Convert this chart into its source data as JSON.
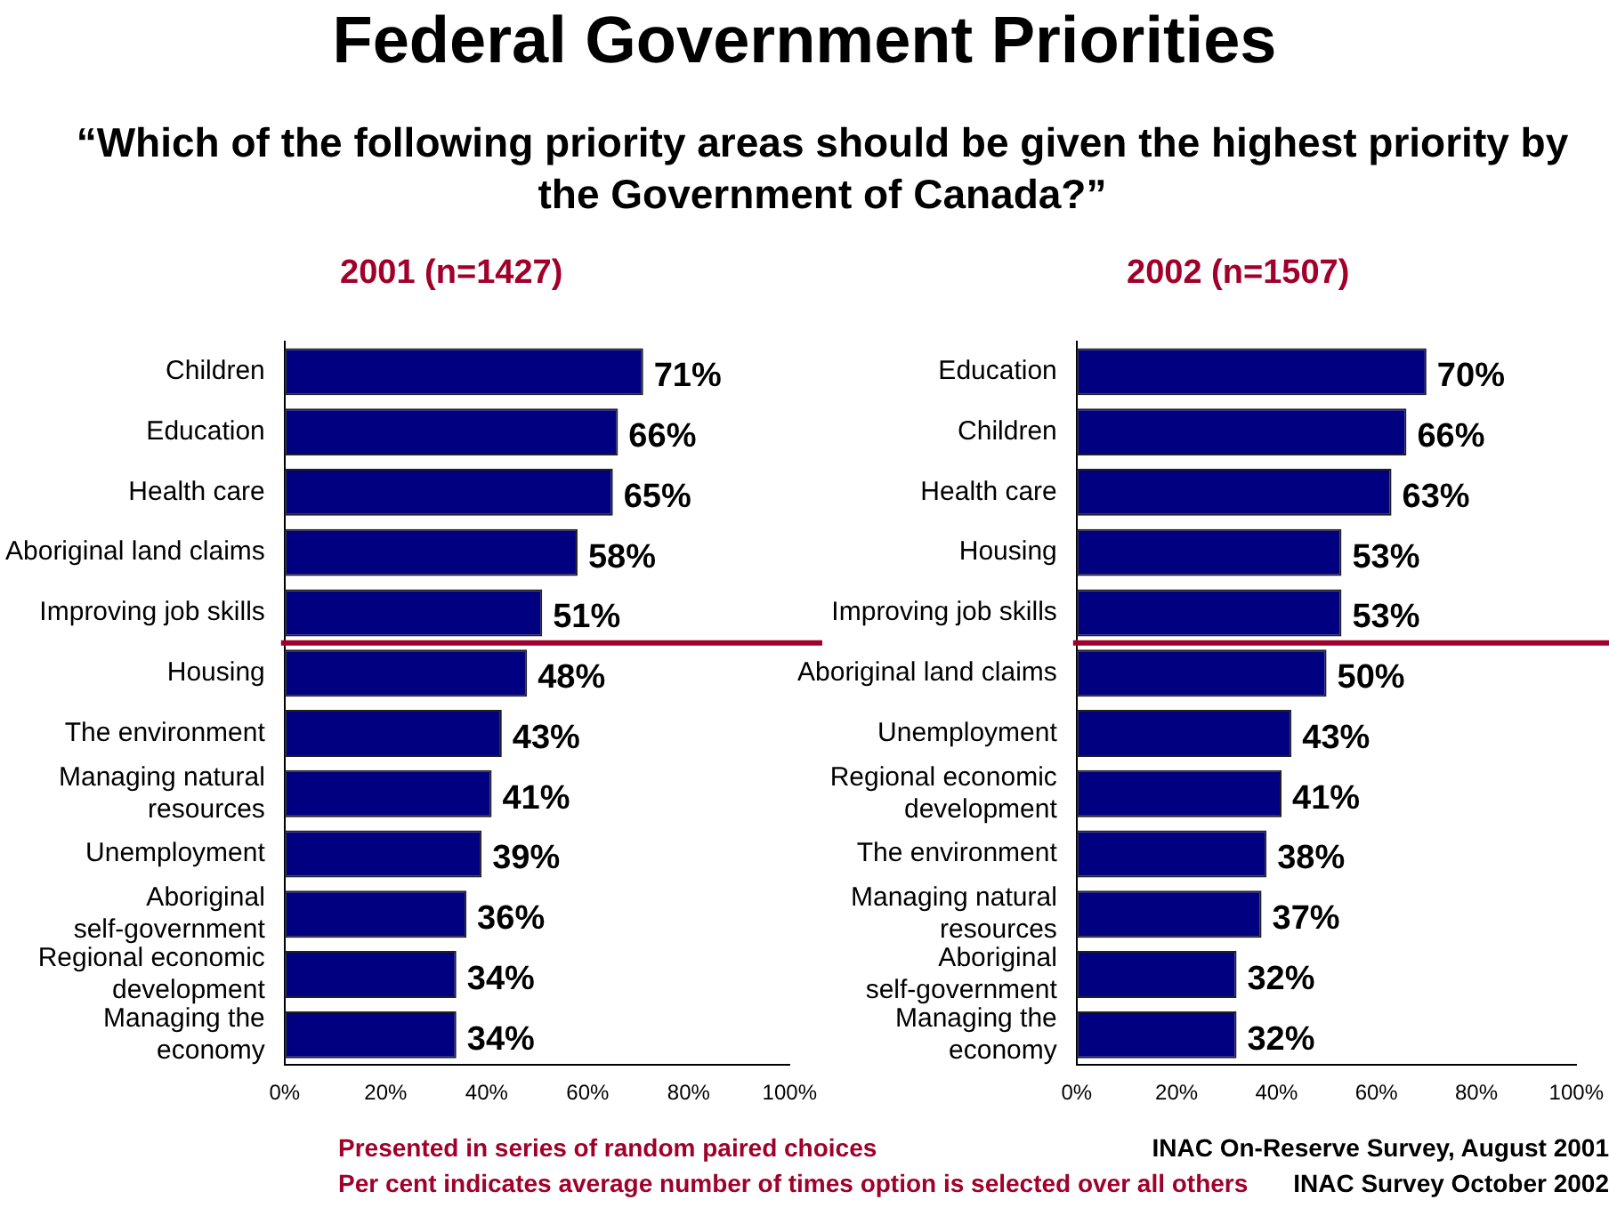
{
  "chart_data": [
    {
      "type": "bar",
      "orientation": "horizontal",
      "title": "Federal Government Priorities",
      "subtitle": "“Which of the following priority areas should be given the highest priority by the Government of Canada?”",
      "categories": [
        "Children",
        "Education",
        "Health care",
        "Aboriginal land claims",
        "Improving job skills",
        "Housing",
        "The environment",
        "Managing natural resources",
        "Unemployment",
        "Aboriginal self-government",
        "Regional economic development",
        "Managing the economy"
      ],
      "values": [
        71,
        66,
        65,
        58,
        51,
        48,
        43,
        41,
        39,
        36,
        34,
        34
      ],
      "value_labels": [
        "71%",
        "66%",
        "65%",
        "58%",
        "51%",
        "48%",
        "43%",
        "41%",
        "39%",
        "36%",
        "34%",
        "34%"
      ],
      "color": "#000080",
      "xlim": [
        0,
        100
      ],
      "xticks": [
        {
          "value": 0,
          "label": "0%"
        },
        {
          "value": 20,
          "label": "20%"
        },
        {
          "value": 40,
          "label": "40%"
        },
        {
          "value": 60,
          "label": "60%"
        },
        {
          "value": 80,
          "label": "80%"
        },
        {
          "value": 100,
          "label": "100%"
        }
      ],
      "ref_lines": [
        {
          "axis": "y",
          "value": "Improving job skills",
          "color": "#a0002a"
        }
      ],
      "annotations": [
        "2001 (n=1427)",
        "Presented in series of random paired choices",
        "Per cent indicates average number of times option is selected over all others"
      ],
      "grid": false,
      "legend": false
    },
    {
      "type": "bar",
      "orientation": "horizontal",
      "categories": [
        "Education",
        "Children",
        "Health care",
        "Housing",
        "Improving job skills",
        "Aboriginal land claims",
        "Unemployment",
        "Regional economic development",
        "The environment",
        "Managing natural resources",
        "Aboriginal self-government",
        "Managing the economy"
      ],
      "values": [
        70,
        66,
        63,
        53,
        53,
        50,
        43,
        41,
        38,
        37,
        32,
        32
      ],
      "value_labels": [
        "70%",
        "66%",
        "63%",
        "53%",
        "53%",
        "50%",
        "43%",
        "41%",
        "38%",
        "37%",
        "32%",
        "32%"
      ],
      "color": "#000080",
      "xlim": [
        0,
        100
      ],
      "xticks": [
        {
          "value": 0,
          "label": "0%"
        },
        {
          "value": 20,
          "label": "20%"
        },
        {
          "value": 40,
          "label": "40%"
        },
        {
          "value": 60,
          "label": "60%"
        },
        {
          "value": 80,
          "label": "80%"
        },
        {
          "value": 100,
          "label": "100%"
        }
      ],
      "ref_lines": [
        {
          "axis": "y",
          "value": "Improving job skills",
          "color": "#a0002a"
        }
      ],
      "annotations": [
        "2002 (n=1507)",
        "INAC On-Reserve Survey, August 2001",
        "INAC Survey October 2002"
      ],
      "grid": false,
      "legend": false
    }
  ]
}
